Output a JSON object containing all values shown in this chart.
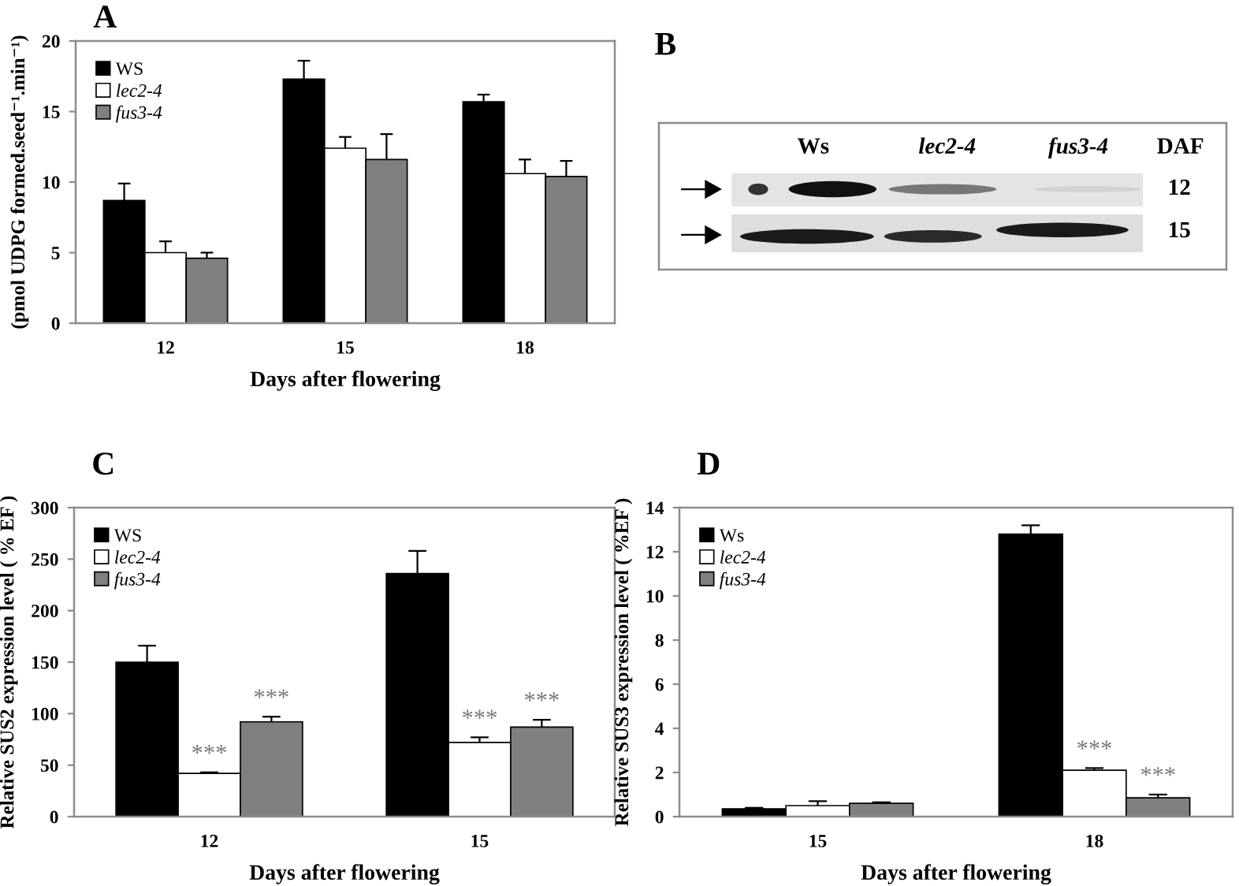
{
  "chart_data": [
    {
      "type": "bar",
      "title": "A",
      "ylabel": "(pmol UDPG formed.seed⁻¹.min⁻¹)",
      "xlabel": "Days after flowering",
      "categories": [
        "12",
        "15",
        "18"
      ],
      "ylim": [
        0,
        20
      ],
      "yticks": [
        0,
        5,
        10,
        15,
        20
      ],
      "legend": "top left",
      "series": [
        {
          "name": "WS",
          "color": "#000000",
          "values": [
            8.7,
            17.3,
            15.7
          ],
          "errors": [
            [
              8.7,
              9.9
            ],
            [
              17.3,
              18.6
            ],
            [
              15.7,
              16.2
            ]
          ]
        },
        {
          "name": "lec2-4",
          "color": "#ffffff",
          "values": [
            5.0,
            12.4,
            10.6
          ],
          "errors": [
            [
              5.0,
              5.8
            ],
            [
              12.4,
              13.2
            ],
            [
              10.6,
              11.6
            ]
          ]
        },
        {
          "name": "fus3-4",
          "color": "#808080",
          "values": [
            4.6,
            11.6,
            10.4
          ],
          "errors": [
            [
              4.6,
              5.0
            ],
            [
              11.6,
              13.4
            ],
            [
              10.4,
              11.5
            ]
          ]
        }
      ]
    },
    {
      "type": "other",
      "title": "B",
      "annotations": [
        "Ws",
        "lec2-4",
        "fus3-4",
        "DAF",
        "12",
        "15"
      ]
    },
    {
      "type": "bar",
      "title": "C",
      "ylabel": "Relative SUS2 expression level ( % EF )",
      "xlabel": "Days after flowering",
      "categories": [
        "12",
        "15"
      ],
      "ylim": [
        0,
        300
      ],
      "yticks": [
        0,
        50,
        100,
        150,
        200,
        250,
        300
      ],
      "legend": "top left",
      "series": [
        {
          "name": "WS",
          "color": "#000000",
          "values": [
            150,
            236
          ],
          "errors": [
            [
              150,
              166
            ],
            [
              236,
              258
            ]
          ]
        },
        {
          "name": "lec2-4",
          "color": "#ffffff",
          "values": [
            42,
            72
          ],
          "errors": [
            [
              42,
              43
            ],
            [
              72,
              77
            ]
          ]
        },
        {
          "name": "fus3-4",
          "color": "#808080",
          "values": [
            92,
            87
          ],
          "errors": [
            [
              92,
              97
            ],
            [
              87,
              94
            ]
          ]
        }
      ],
      "annotations": [
        "***",
        "***",
        "***",
        "***"
      ]
    },
    {
      "type": "bar",
      "title": "D",
      "ylabel": "Relative SUS3 expression level ( %EF )",
      "xlabel": "Days after flowering",
      "categories": [
        "15",
        "18"
      ],
      "ylim": [
        0,
        14
      ],
      "yticks": [
        0,
        2,
        4,
        6,
        8,
        10,
        12,
        14
      ],
      "legend": "top left",
      "series": [
        {
          "name": "Ws",
          "color": "#000000",
          "values": [
            0.35,
            12.8
          ],
          "errors": [
            [
              0.35,
              0.4
            ],
            [
              12.8,
              13.2
            ]
          ]
        },
        {
          "name": "lec2-4",
          "color": "#ffffff",
          "values": [
            0.5,
            2.1
          ],
          "errors": [
            [
              0.5,
              0.7
            ],
            [
              2.1,
              2.2
            ]
          ]
        },
        {
          "name": "fus3-4",
          "color": "#808080",
          "values": [
            0.6,
            0.85
          ],
          "errors": [
            [
              0.6,
              0.65
            ],
            [
              0.85,
              1.0
            ]
          ]
        }
      ],
      "annotations": [
        "***",
        "***"
      ]
    }
  ]
}
